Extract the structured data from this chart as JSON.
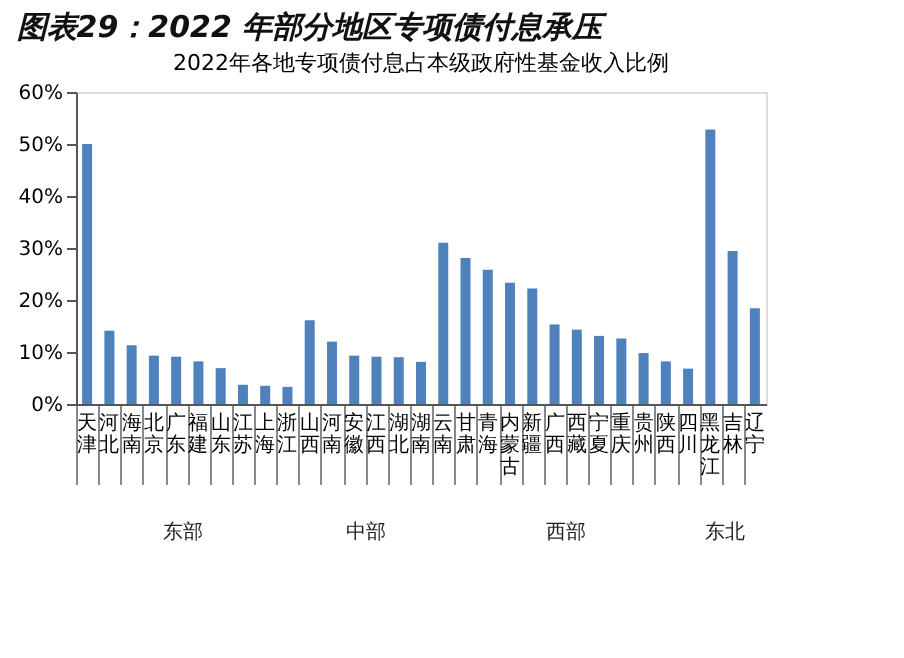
{
  "chart_data": {
    "type": "bar",
    "title": "图表29：2022 年部分地区专项债付息承压",
    "subtitle": "2022年各地专项债付息占本级政府性基金收入比例",
    "categories": [
      "天津",
      "河北",
      "海南",
      "北京",
      "广东",
      "福建",
      "山东",
      "江苏",
      "上海",
      "浙江",
      "山西",
      "河南",
      "安徽",
      "江西",
      "湖北",
      "湖南",
      "云南",
      "甘肃",
      "青海",
      "内蒙古",
      "新疆",
      "广西",
      "西藏",
      "宁夏",
      "重庆",
      "贵州",
      "陕西",
      "四川",
      "黑龙江",
      "吉林",
      "辽宁"
    ],
    "values": [
      50.0,
      14.1,
      11.3,
      9.3,
      9.1,
      8.2,
      6.9,
      3.7,
      3.5,
      3.3,
      16.1,
      12.0,
      9.3,
      9.1,
      9.0,
      8.1,
      31.0,
      28.1,
      25.8,
      23.3,
      22.2,
      15.3,
      14.3,
      13.1,
      12.6,
      9.8,
      8.2,
      6.8,
      52.8,
      29.4,
      18.4
    ],
    "color": "#4f81bd",
    "ylim": [
      0,
      60
    ],
    "yticks": [
      {
        "value": 0,
        "label": "0%"
      },
      {
        "value": 10,
        "label": "10%"
      },
      {
        "value": 20,
        "label": "20%"
      },
      {
        "value": 30,
        "label": "30%"
      },
      {
        "value": 40,
        "label": "40%"
      },
      {
        "value": 50,
        "label": "50%"
      },
      {
        "value": 60,
        "label": "60%"
      }
    ],
    "grid": false,
    "annotations": [
      "东部",
      "中部",
      "西部",
      "东北"
    ]
  }
}
